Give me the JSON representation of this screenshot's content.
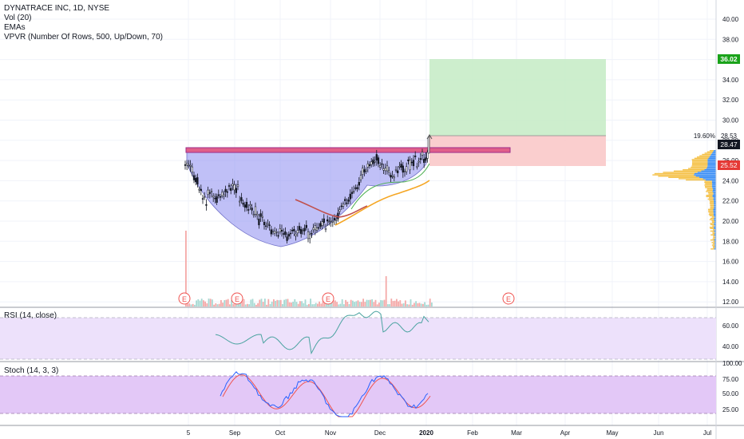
{
  "header": {
    "symbol_line": "DYNATRACE INC, 1D, NYSE",
    "indicators": [
      "Vol (20)",
      "EMAs",
      "VPVR (Number Of Rows, 500, Up/Down, 70)"
    ]
  },
  "panes": {
    "rsi_label": "RSI (14, close)",
    "stoch_label": "Stoch (14, 3, 3)"
  },
  "price_axis": {
    "ticks": [
      "40.00",
      "38.00",
      "36.00",
      "34.00",
      "32.00",
      "30.00",
      "28.00",
      "26.00",
      "24.00",
      "22.00",
      "20.00",
      "18.00",
      "16.00",
      "14.00",
      "12.00"
    ],
    "badges": {
      "target": "36.02",
      "last": "28.47",
      "stop": "25.52",
      "entry": "28.53",
      "pct": "19.60%"
    }
  },
  "rsi_axis": {
    "ticks": [
      "60.00",
      "40.00"
    ]
  },
  "stoch_axis": {
    "ticks": [
      "100.00",
      "75.00",
      "50.00",
      "25.00"
    ]
  },
  "time_axis": {
    "ticks": [
      "5",
      "Sep",
      "Oct",
      "Nov",
      "Dec",
      "2020",
      "Feb",
      "Mar",
      "Apr",
      "May",
      "Jun",
      "Jul"
    ]
  },
  "earnings_marker": "E",
  "colors": {
    "up": "#26a69a",
    "down": "#ef5350",
    "cup_fill": "#8c8cf0",
    "profit": "#7fd17f",
    "loss": "#f79a9a",
    "ema_orange": "#f5a623",
    "ema_green": "#4caf50",
    "rsi_line": "#4aa3a0",
    "stoch_k": "#2962ff",
    "stoch_d": "#ef5350",
    "target_badge": "#1aa31a",
    "vpvr_up": "#f5c24a",
    "vpvr_down": "#3d8ff5"
  }
}
